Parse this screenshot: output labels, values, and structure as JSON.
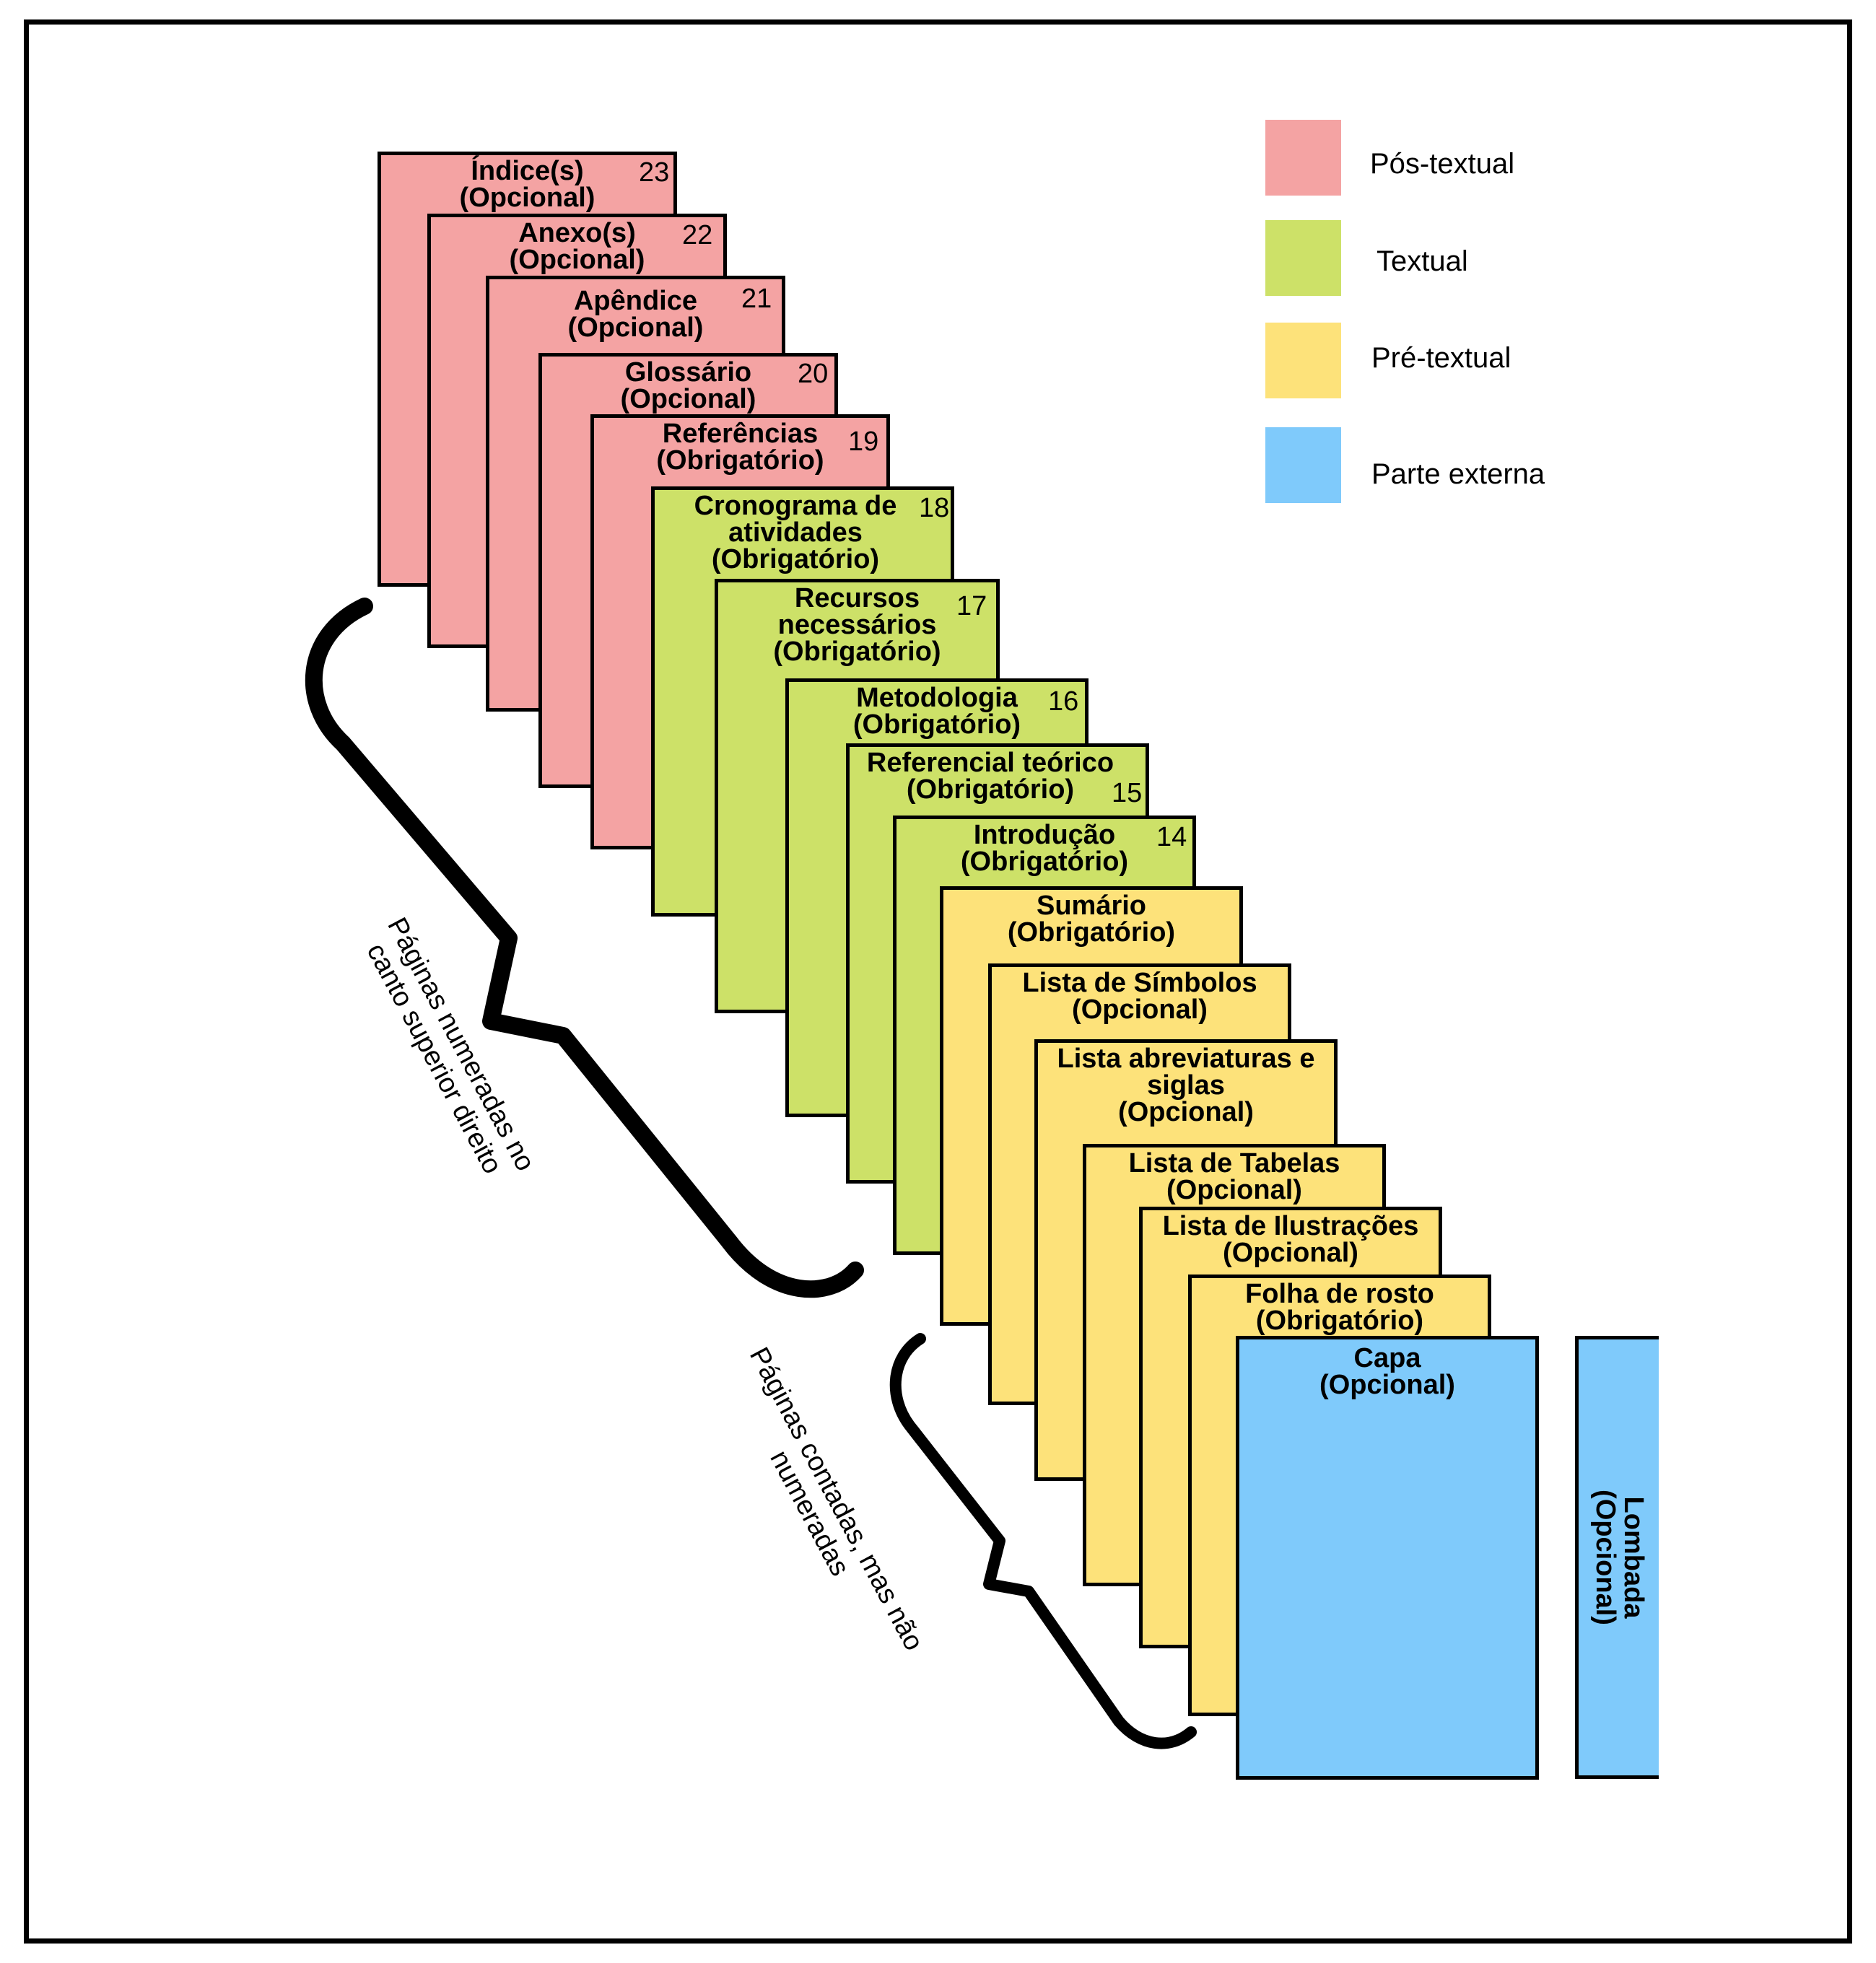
{
  "legend": [
    {
      "label": "Pós-textual",
      "color": "#f4a3a3"
    },
    {
      "label": "Textual",
      "color": "#cde168"
    },
    {
      "label": "Pré-textual",
      "color": "#fde27a"
    },
    {
      "label": "Parte externa",
      "color": "#7fcafb"
    }
  ],
  "pages": [
    {
      "title": "Índice(s)\n(Opcional)",
      "number": "23",
      "section": "pos"
    },
    {
      "title": "Anexo(s)\n(Opcional)",
      "number": "22",
      "section": "pos"
    },
    {
      "title": "Apêndice\n(Opcional)",
      "number": "21",
      "section": "pos"
    },
    {
      "title": "Glossário\n(Opcional)",
      "number": "20",
      "section": "pos"
    },
    {
      "title": "Referências\n(Obrigatório)",
      "number": "19",
      "section": "pos"
    },
    {
      "title": "Cronograma de\natividades\n(Obrigatório)",
      "number": "18",
      "section": "textual"
    },
    {
      "title": "Recursos\nnecessários\n(Obrigatório)",
      "number": "17",
      "section": "textual"
    },
    {
      "title": "Metodologia\n(Obrigatório)",
      "number": "16",
      "section": "textual"
    },
    {
      "title": "Referencial teórico\n(Obrigatório)",
      "number": "15",
      "section": "textual"
    },
    {
      "title": "Introdução\n(Obrigatório)",
      "number": "14",
      "section": "textual"
    },
    {
      "title": "Sumário\n(Obrigatório)",
      "number": "",
      "section": "pre"
    },
    {
      "title": "Lista de Símbolos\n(Opcional)",
      "number": "",
      "section": "pre"
    },
    {
      "title": "Lista abreviaturas e\nsiglas\n(Opcional)",
      "number": "",
      "section": "pre"
    },
    {
      "title": "Lista de Tabelas\n(Opcional)",
      "number": "",
      "section": "pre"
    },
    {
      "title": "Lista de Ilustrações\n(Opcional)",
      "number": "",
      "section": "pre"
    },
    {
      "title": "Folha de rosto\n(Obrigatório)",
      "number": "",
      "section": "pre"
    },
    {
      "title": "Capa\n(Opcional)",
      "number": "",
      "section": "externa"
    }
  ],
  "spine": {
    "title": "Lombada\n(Opcional)"
  },
  "notes": {
    "numbered": "Páginas numeradas no\ncanto superior direito",
    "counted": "Páginas contadas, mas não\nnumeradas"
  }
}
